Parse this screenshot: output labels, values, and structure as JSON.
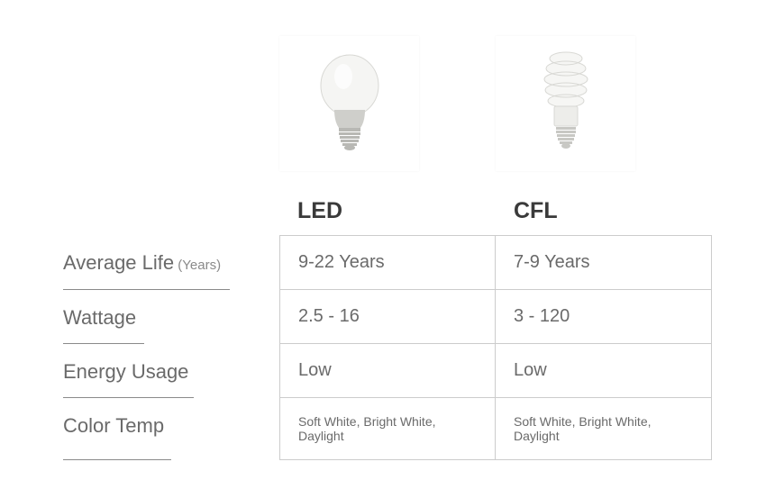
{
  "columns": [
    {
      "key": "led",
      "header": "LED"
    },
    {
      "key": "cfl",
      "header": "CFL"
    }
  ],
  "rows": [
    {
      "label": "Average Life",
      "label_suffix": "(Years)",
      "underline_width": 185,
      "led": "9-22 Years",
      "cfl": "7-9 Years",
      "small": false
    },
    {
      "label": "Wattage",
      "label_suffix": "",
      "underline_width": 90,
      "led": "2.5 - 16",
      "cfl": "3 - 120",
      "small": false
    },
    {
      "label": "Energy Usage",
      "label_suffix": "",
      "underline_width": 145,
      "led": "Low",
      "cfl": "Low",
      "small": false
    },
    {
      "label": "Color Temp",
      "label_suffix": "",
      "underline_width": 120,
      "led": "Soft White, Bright White, Daylight",
      "cfl": "Soft White, Bright White, Daylight",
      "small": true
    }
  ],
  "colors": {
    "background": "#ffffff",
    "text_primary": "#3a3a3a",
    "text_secondary": "#6a6a6a",
    "text_muted": "#8a8a8a",
    "border": "#cccccc",
    "underline": "#8a8a8a"
  },
  "bulbs": {
    "led": {
      "glass_fill": "#f5f5f3",
      "glass_stroke": "#d8d8d4",
      "base_fill": "#cfcfcb",
      "thread_fill": "#b8b8b4"
    },
    "cfl": {
      "spiral_fill": "#f6f6f4",
      "spiral_stroke": "#d8d8d4",
      "base_fill": "#ededea",
      "thread_fill": "#c8c8c4"
    }
  }
}
